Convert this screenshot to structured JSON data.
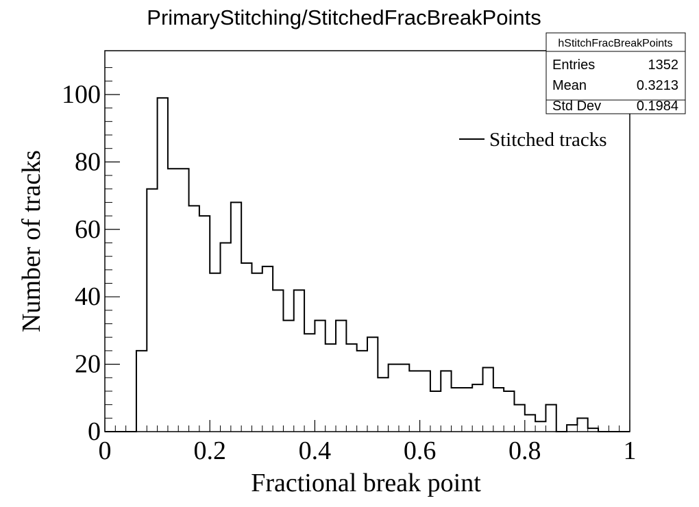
{
  "chart_data": {
    "type": "bar",
    "histogram": true,
    "title": "PrimaryStitching/StitchedFracBreakPoints",
    "xlabel": "Fractional break point",
    "ylabel": "Number of tracks",
    "xlim": [
      0,
      1
    ],
    "ylim": [
      0,
      113
    ],
    "x_ticks": [
      "0",
      "0.2",
      "0.4",
      "0.6",
      "0.8",
      "1"
    ],
    "y_ticks": [
      "0",
      "20",
      "40",
      "60",
      "80",
      "100"
    ],
    "bin_width": 0.02,
    "bin_edges_start": 0,
    "series": [
      {
        "name": "Stitched tracks",
        "values": [
          0,
          0,
          0,
          24,
          72,
          99,
          78,
          78,
          67,
          64,
          47,
          56,
          68,
          50,
          47,
          49,
          42,
          33,
          42,
          29,
          33,
          26,
          33,
          26,
          24,
          28,
          16,
          20,
          20,
          18,
          18,
          12,
          18,
          13,
          13,
          14,
          19,
          13,
          12,
          8,
          5,
          3,
          8,
          0,
          2,
          4,
          1,
          0,
          0,
          0
        ]
      }
    ],
    "grid": false,
    "legend": "top-right",
    "stats_box": {
      "name": "hStitchFracBreakPoints",
      "rows": [
        {
          "label": "Entries",
          "value": "1352"
        },
        {
          "label": "Mean",
          "value": "0.3213"
        },
        {
          "label": "Std Dev",
          "value": "0.1984"
        }
      ]
    }
  }
}
